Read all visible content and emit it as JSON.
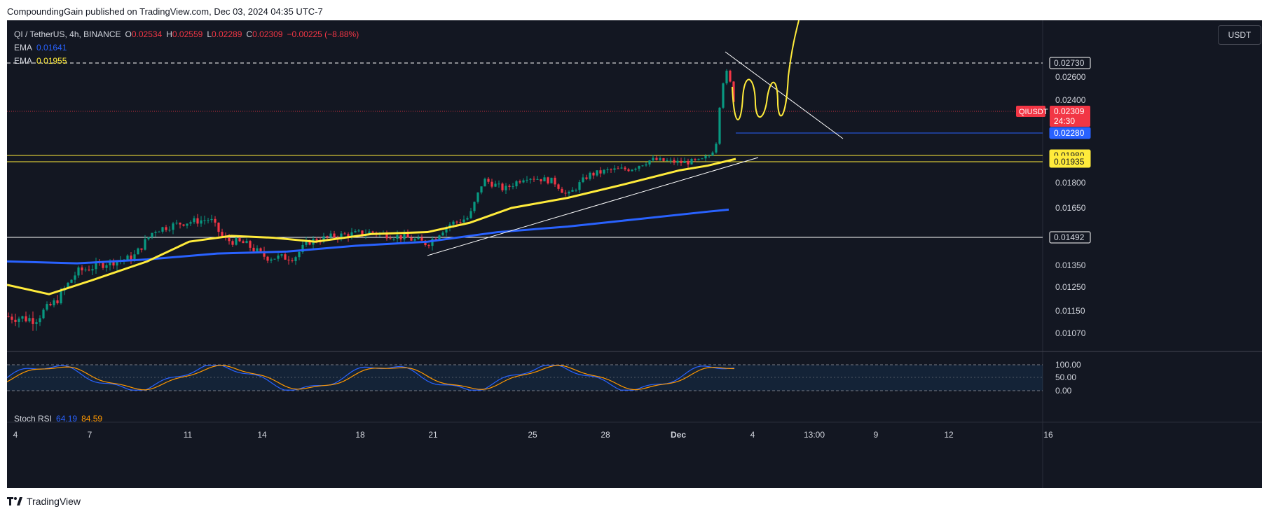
{
  "header": {
    "text": "CompoundingGain published on TradingView.com, Dec 03, 2024 04:35 UTC-7"
  },
  "footer": {
    "brand": "TradingView"
  },
  "legend": {
    "symbol": "QI / TetherUS, 4h, BINANCE",
    "open_label": "O",
    "open": "0.02534",
    "high_label": "H",
    "high": "0.02559",
    "low_label": "L",
    "low": "0.02289",
    "close_label": "C",
    "close": "0.02309",
    "change": "−0.00225 (−8.88%)",
    "ema1_label": "EMA",
    "ema1": "0.01641",
    "ema2_label": "EMA",
    "ema2": "0.01955"
  },
  "unit_button": "USDT",
  "stoch": {
    "label": "Stoch RSI",
    "k": "64.19",
    "d": "84.59"
  },
  "colors": {
    "background": "#131722",
    "up": "#089981",
    "down": "#f23645",
    "ema_fast": "#ffeb3b",
    "ema_slow": "#2962ff",
    "grid": "#2a2e39"
  },
  "chart_data": {
    "type": "candlestick",
    "price_range": [
      0.0098,
      0.0305
    ],
    "price_ticks": [
      "0.02600",
      "0.02400",
      "0.01800",
      "0.01650",
      "0.01350",
      "0.01250",
      "0.01150",
      "0.01070"
    ],
    "levels": [
      {
        "value": 0.0273,
        "label": "0.02730",
        "style": "dashed",
        "color": "#ffffff"
      },
      {
        "value": 0.0198,
        "label": "0.01980",
        "style": "solid",
        "color": "#ffeb3b"
      },
      {
        "value": 0.01935,
        "label": "0.01935",
        "style": "solid",
        "color": "#ffeb3b"
      },
      {
        "value": 0.01492,
        "label": "0.01492",
        "style": "solid",
        "color": "#ffffff"
      },
      {
        "value": 0.0228,
        "label": "0.02280",
        "style": "solid",
        "color": "#2962ff"
      }
    ],
    "last_price": {
      "symbol": "QIUSDT",
      "value": "0.02309",
      "countdown": "24:30"
    },
    "x_ticks": [
      "4",
      "7",
      "11",
      "14",
      "18",
      "21",
      "25",
      "28",
      "Dec",
      "4",
      "13:00",
      "9",
      "12",
      "16"
    ],
    "stoch_ticks": [
      "100.00",
      "50.00",
      "0.00"
    ]
  }
}
